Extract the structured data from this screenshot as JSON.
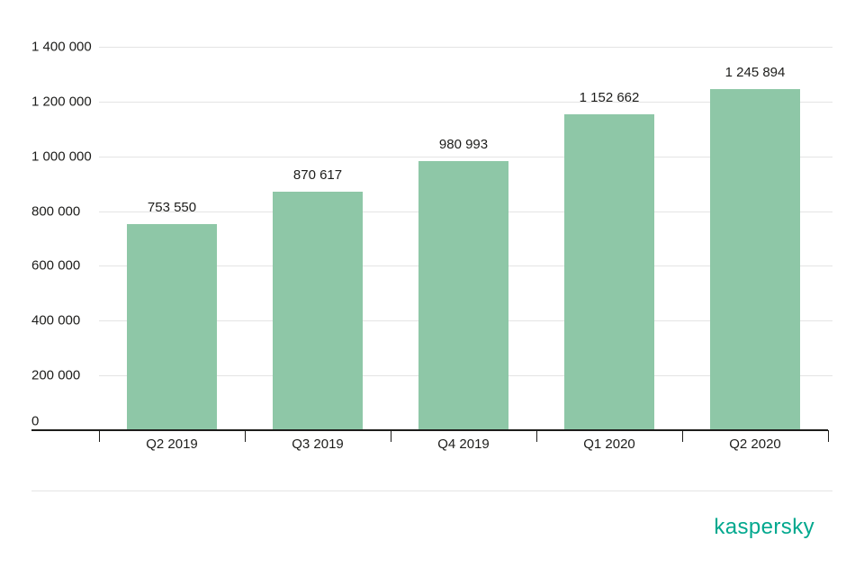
{
  "chart_data": {
    "type": "bar",
    "categories": [
      "Q2 2019",
      "Q3 2019",
      "Q4 2019",
      "Q1 2020",
      "Q2 2020"
    ],
    "values": [
      753550,
      870617,
      980993,
      1152662,
      1245894
    ],
    "value_labels": [
      "753 550",
      "870 617",
      "980 993",
      "1 152 662",
      "1 245 894"
    ],
    "title": "",
    "xlabel": "",
    "ylabel": "",
    "ylim": [
      0,
      1400000
    ],
    "yticks": [
      0,
      200000,
      400000,
      600000,
      800000,
      1000000,
      1200000,
      1400000
    ],
    "ytick_labels": [
      "0",
      "200 000",
      "400 000",
      "600 000",
      "800 000",
      "1 000 000",
      "1 200 000",
      "1 400 000"
    ],
    "grid": true,
    "legend": false,
    "bar_color": "#8EC7A7",
    "axis_color": "#1d1d1b",
    "gridline_color": "#e4e4e4"
  },
  "branding": {
    "logo_text": "kaspersky",
    "logo_color": "#00A88E"
  }
}
